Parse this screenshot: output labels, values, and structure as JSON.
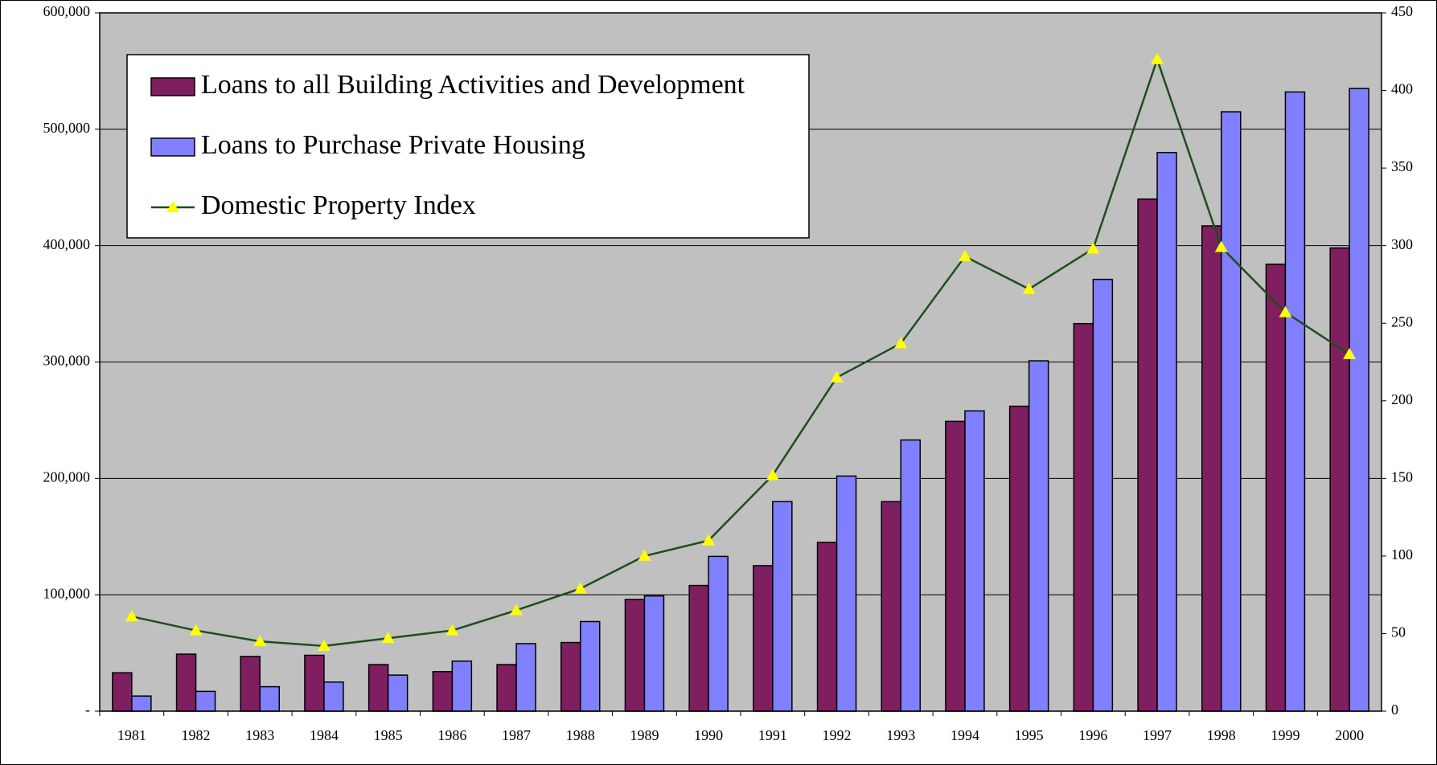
{
  "chart_data": {
    "type": "bar_line",
    "categories": [
      "1981",
      "1982",
      "1983",
      "1984",
      "1985",
      "1986",
      "1987",
      "1988",
      "1989",
      "1990",
      "1991",
      "1992",
      "1993",
      "1994",
      "1995",
      "1996",
      "1997",
      "1998",
      "1999",
      "2000"
    ],
    "series": [
      {
        "name": "Loans to all Building Activities and Development",
        "color": "#7f1f5f",
        "type": "bar",
        "values": [
          33000,
          49000,
          47000,
          48000,
          40000,
          34000,
          40000,
          59000,
          96000,
          108000,
          125000,
          145000,
          180000,
          249000,
          262000,
          333000,
          440000,
          417000,
          384000,
          398000
        ]
      },
      {
        "name": "Loans to Purchase Private Housing",
        "color": "#8080ff",
        "type": "bar",
        "values": [
          13000,
          17000,
          21000,
          25000,
          31000,
          43000,
          58000,
          77000,
          99000,
          133000,
          180000,
          202000,
          233000,
          258000,
          301000,
          371000,
          480000,
          515000,
          532000,
          535000
        ]
      },
      {
        "name": "Domestic Property Index",
        "color": "#1f4d1f",
        "marker_color": "#ffff00",
        "type": "line",
        "axis": "y2",
        "values": [
          61,
          52,
          45,
          42,
          47,
          52,
          65,
          79,
          100,
          110,
          152,
          215,
          237,
          293,
          272,
          298,
          420,
          299,
          257,
          230
        ]
      }
    ],
    "ylim": [
      0,
      600000
    ],
    "yticks": [
      {
        "value": 0,
        "label": "-"
      },
      {
        "value": 100000,
        "label": "100,000"
      },
      {
        "value": 200000,
        "label": "200,000"
      },
      {
        "value": 300000,
        "label": "300,000"
      },
      {
        "value": 400000,
        "label": "400,000"
      },
      {
        "value": 500000,
        "label": "500,000"
      },
      {
        "value": 600000,
        "label": "600,000"
      }
    ],
    "y2lim": [
      0,
      450
    ],
    "y2ticks": [
      0,
      50,
      100,
      150,
      200,
      250,
      300,
      350,
      400,
      450
    ],
    "grid": true,
    "legend": "upper left",
    "background": "#c0c0c0"
  }
}
